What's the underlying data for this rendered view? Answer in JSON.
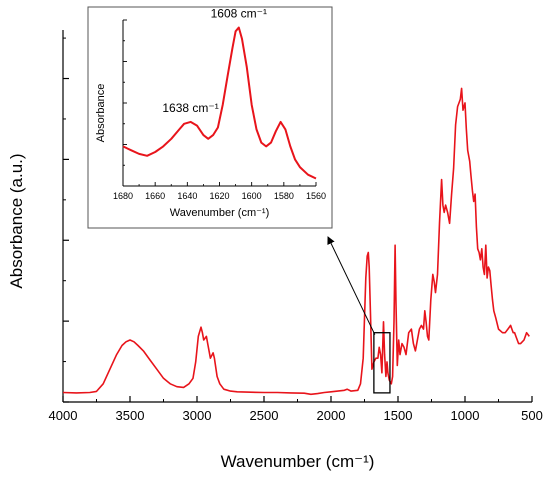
{
  "chart_data": [
    {
      "type": "line",
      "xlabel": "Wavenumber (cm⁻¹)",
      "ylabel": "Absorbance (a.u.)",
      "xlim": [
        4000,
        500
      ],
      "x_reversed": true,
      "x_ticks": [
        4000,
        3500,
        3000,
        2500,
        2000,
        1500,
        1000,
        500
      ],
      "y_tick_labels_shown": false,
      "line_color": "#e8141b",
      "grid": false,
      "legend": "none",
      "series": [
        {
          "x": [
            4000,
            3900,
            3800,
            3750,
            3700,
            3650,
            3600,
            3560,
            3530,
            3500,
            3470,
            3440,
            3400,
            3350,
            3300,
            3250,
            3200,
            3150,
            3100,
            3060,
            3030,
            3010,
            2990,
            2970,
            2960,
            2950,
            2930,
            2920,
            2900,
            2880,
            2870,
            2850,
            2830,
            2800,
            2750,
            2700,
            2600,
            2500,
            2400,
            2300,
            2200,
            2150,
            2100,
            2050,
            2000,
            1950,
            1900,
            1880,
            1850,
            1800,
            1780,
            1760,
            1740,
            1730,
            1722,
            1715,
            1705,
            1695,
            1680,
            1665,
            1650,
            1640,
            1630,
            1620,
            1608,
            1600,
            1590,
            1582,
            1575,
            1565,
            1550,
            1540,
            1530,
            1522,
            1515,
            1505,
            1495,
            1485,
            1470,
            1455,
            1440,
            1420,
            1400,
            1385,
            1370,
            1355,
            1340,
            1325,
            1310,
            1300,
            1290,
            1280,
            1270,
            1255,
            1240,
            1230,
            1220,
            1205,
            1190,
            1180,
            1175,
            1165,
            1155,
            1145,
            1130,
            1115,
            1100,
            1085,
            1070,
            1055,
            1045,
            1035,
            1025,
            1015,
            1000,
            990,
            980,
            965,
            955,
            945,
            935,
            925,
            915,
            905,
            895,
            885,
            875,
            865,
            855,
            845,
            835,
            825,
            815,
            805,
            795,
            785,
            770,
            750,
            720,
            700,
            680,
            660,
            650,
            640,
            630,
            620,
            600,
            585,
            560,
            540,
            520
          ],
          "y": [
            0.006,
            0.005,
            0.006,
            0.009,
            0.03,
            0.07,
            0.11,
            0.135,
            0.145,
            0.15,
            0.145,
            0.135,
            0.12,
            0.095,
            0.07,
            0.045,
            0.03,
            0.022,
            0.02,
            0.03,
            0.045,
            0.09,
            0.16,
            0.185,
            0.17,
            0.15,
            0.16,
            0.14,
            0.1,
            0.115,
            0.1,
            0.05,
            0.03,
            0.015,
            0.01,
            0.008,
            0.007,
            0.006,
            0.006,
            0.005,
            0.004,
            0.001,
            0.003,
            0.006,
            0.008,
            0.01,
            0.012,
            0.015,
            0.01,
            0.012,
            0.03,
            0.1,
            0.32,
            0.38,
            0.39,
            0.35,
            0.22,
            0.07,
            0.09,
            0.1,
            0.1,
            0.13,
            0.11,
            0.06,
            0.2,
            0.11,
            0.05,
            0.09,
            0.06,
            0.04,
            0.03,
            0.05,
            0.2,
            0.41,
            0.25,
            0.08,
            0.15,
            0.11,
            0.14,
            0.13,
            0.11,
            0.17,
            0.18,
            0.14,
            0.12,
            0.15,
            0.18,
            0.19,
            0.18,
            0.23,
            0.2,
            0.16,
            0.15,
            0.26,
            0.33,
            0.31,
            0.28,
            0.33,
            0.47,
            0.55,
            0.59,
            0.52,
            0.5,
            0.52,
            0.5,
            0.47,
            0.55,
            0.62,
            0.74,
            0.79,
            0.8,
            0.81,
            0.84,
            0.78,
            0.8,
            0.73,
            0.67,
            0.64,
            0.6,
            0.56,
            0.53,
            0.55,
            0.46,
            0.4,
            0.39,
            0.37,
            0.4,
            0.35,
            0.33,
            0.41,
            0.32,
            0.35,
            0.34,
            0.3,
            0.26,
            0.23,
            0.21,
            0.18,
            0.17,
            0.17,
            0.18,
            0.19,
            0.18,
            0.17,
            0.17,
            0.16,
            0.14,
            0.14,
            0.15,
            0.17,
            0.16
          ]
        }
      ],
      "annotations": [
        {
          "type": "box",
          "x_range": [
            1680,
            1560
          ]
        },
        {
          "type": "arrow",
          "from_x": 1680,
          "to": "inset"
        }
      ]
    },
    {
      "type": "line",
      "role": "inset",
      "xlabel": "Wavenumber (cm⁻¹)",
      "ylabel": "Absorbance",
      "xlim": [
        1680,
        1560
      ],
      "x_reversed": true,
      "x_ticks": [
        1680,
        1660,
        1640,
        1620,
        1600,
        1580,
        1560
      ],
      "y_tick_labels_shown": false,
      "line_color": "#e8141b",
      "series": [
        {
          "x": [
            1680,
            1675,
            1670,
            1665,
            1660,
            1655,
            1650,
            1645,
            1642,
            1638,
            1634,
            1630,
            1627,
            1624,
            1621,
            1618,
            1615,
            1612,
            1610,
            1608,
            1606,
            1603,
            1600,
            1597,
            1594,
            1591,
            1588,
            1585,
            1582,
            1579,
            1576,
            1573,
            1570,
            1565,
            1560
          ],
          "y": [
            0.33,
            0.31,
            0.29,
            0.28,
            0.3,
            0.33,
            0.37,
            0.42,
            0.45,
            0.46,
            0.44,
            0.39,
            0.37,
            0.39,
            0.43,
            0.55,
            0.7,
            0.85,
            0.94,
            0.96,
            0.9,
            0.75,
            0.55,
            0.42,
            0.35,
            0.33,
            0.35,
            0.41,
            0.46,
            0.42,
            0.33,
            0.26,
            0.22,
            0.18,
            0.16
          ]
        }
      ],
      "peak_labels": [
        {
          "x": 1638,
          "text": "1638 cm⁻¹"
        },
        {
          "x": 1608,
          "text": "1608 cm⁻¹"
        }
      ]
    }
  ]
}
